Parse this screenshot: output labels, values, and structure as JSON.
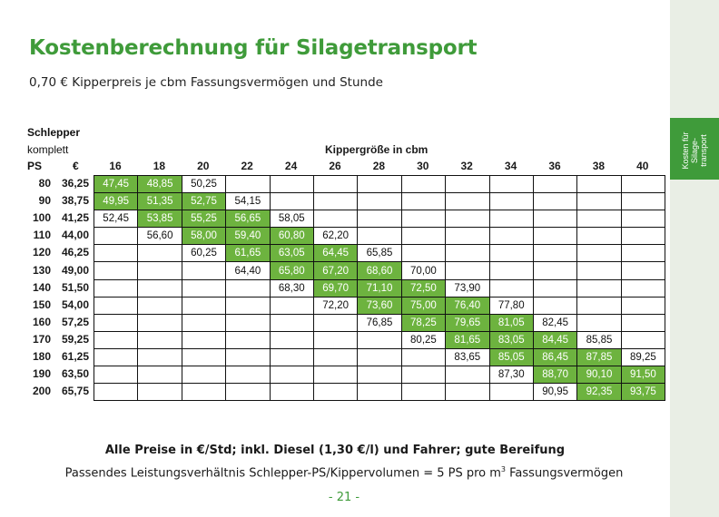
{
  "title": "Kostenberechnung für Silagetransport",
  "subtitle": "0,70 € Kipperpreis je cbm Fassungsvermögen und Stunde",
  "side_tab": "Kosten für\nSilage-\ntransport",
  "table": {
    "header_schlepper": "Schlepper",
    "header_komplett": "komplett",
    "header_ps": "PS",
    "header_eur": "€",
    "header_kipper": "Kippergröße in cbm",
    "columns": [
      "16",
      "18",
      "20",
      "22",
      "24",
      "26",
      "28",
      "30",
      "32",
      "34",
      "36",
      "38",
      "40"
    ],
    "rows": [
      {
        "ps": "80",
        "eur": "36,25",
        "cells": [
          "47,45",
          "48,85",
          "50,25",
          "",
          "",
          "",
          "",
          "",
          "",
          "",
          "",
          "",
          ""
        ],
        "green": [
          1,
          1,
          0,
          0,
          0,
          0,
          0,
          0,
          0,
          0,
          0,
          0,
          0
        ]
      },
      {
        "ps": "90",
        "eur": "38,75",
        "cells": [
          "49,95",
          "51,35",
          "52,75",
          "54,15",
          "",
          "",
          "",
          "",
          "",
          "",
          "",
          "",
          ""
        ],
        "green": [
          1,
          1,
          1,
          0,
          0,
          0,
          0,
          0,
          0,
          0,
          0,
          0,
          0
        ]
      },
      {
        "ps": "100",
        "eur": "41,25",
        "cells": [
          "52,45",
          "53,85",
          "55,25",
          "56,65",
          "58,05",
          "",
          "",
          "",
          "",
          "",
          "",
          "",
          ""
        ],
        "green": [
          0,
          1,
          1,
          1,
          0,
          0,
          0,
          0,
          0,
          0,
          0,
          0,
          0
        ]
      },
      {
        "ps": "110",
        "eur": "44,00",
        "cells": [
          "",
          "56,60",
          "58,00",
          "59,40",
          "60,80",
          "62,20",
          "",
          "",
          "",
          "",
          "",
          "",
          ""
        ],
        "green": [
          0,
          0,
          1,
          1,
          1,
          0,
          0,
          0,
          0,
          0,
          0,
          0,
          0
        ]
      },
      {
        "ps": "120",
        "eur": "46,25",
        "cells": [
          "",
          "",
          "60,25",
          "61,65",
          "63,05",
          "64,45",
          "65,85",
          "",
          "",
          "",
          "",
          "",
          ""
        ],
        "green": [
          0,
          0,
          0,
          1,
          1,
          1,
          0,
          0,
          0,
          0,
          0,
          0,
          0
        ]
      },
      {
        "ps": "130",
        "eur": "49,00",
        "cells": [
          "",
          "",
          "",
          "64,40",
          "65,80",
          "67,20",
          "68,60",
          "70,00",
          "",
          "",
          "",
          "",
          ""
        ],
        "green": [
          0,
          0,
          0,
          0,
          1,
          1,
          1,
          0,
          0,
          0,
          0,
          0,
          0
        ]
      },
      {
        "ps": "140",
        "eur": "51,50",
        "cells": [
          "",
          "",
          "",
          "",
          "68,30",
          "69,70",
          "71,10",
          "72,50",
          "73,90",
          "",
          "",
          "",
          ""
        ],
        "green": [
          0,
          0,
          0,
          0,
          0,
          1,
          1,
          1,
          0,
          0,
          0,
          0,
          0
        ]
      },
      {
        "ps": "150",
        "eur": "54,00",
        "cells": [
          "",
          "",
          "",
          "",
          "",
          "72,20",
          "73,60",
          "75,00",
          "76,40",
          "77,80",
          "",
          "",
          ""
        ],
        "green": [
          0,
          0,
          0,
          0,
          0,
          0,
          1,
          1,
          1,
          0,
          0,
          0,
          0
        ]
      },
      {
        "ps": "160",
        "eur": "57,25",
        "cells": [
          "",
          "",
          "",
          "",
          "",
          "",
          "76,85",
          "78,25",
          "79,65",
          "81,05",
          "82,45",
          "",
          ""
        ],
        "green": [
          0,
          0,
          0,
          0,
          0,
          0,
          0,
          1,
          1,
          1,
          0,
          0,
          0
        ]
      },
      {
        "ps": "170",
        "eur": "59,25",
        "cells": [
          "",
          "",
          "",
          "",
          "",
          "",
          "",
          "80,25",
          "81,65",
          "83,05",
          "84,45",
          "85,85",
          ""
        ],
        "green": [
          0,
          0,
          0,
          0,
          0,
          0,
          0,
          0,
          1,
          1,
          1,
          0,
          0
        ]
      },
      {
        "ps": "180",
        "eur": "61,25",
        "cells": [
          "",
          "",
          "",
          "",
          "",
          "",
          "",
          "",
          "83,65",
          "85,05",
          "86,45",
          "87,85",
          "89,25"
        ],
        "green": [
          0,
          0,
          0,
          0,
          0,
          0,
          0,
          0,
          0,
          1,
          1,
          1,
          0
        ]
      },
      {
        "ps": "190",
        "eur": "63,50",
        "cells": [
          "",
          "",
          "",
          "",
          "",
          "",
          "",
          "",
          "",
          "87,30",
          "88,70",
          "90,10",
          "91,50"
        ],
        "green": [
          0,
          0,
          0,
          0,
          0,
          0,
          0,
          0,
          0,
          0,
          1,
          1,
          1
        ]
      },
      {
        "ps": "200",
        "eur": "65,75",
        "cells": [
          "",
          "",
          "",
          "",
          "",
          "",
          "",
          "",
          "",
          "",
          "90,95",
          "92,35",
          "93,75"
        ],
        "green": [
          0,
          0,
          0,
          0,
          0,
          0,
          0,
          0,
          0,
          0,
          0,
          1,
          1
        ]
      }
    ]
  },
  "footer": {
    "note_bold": "Alle Preise in €/Std; inkl. Diesel (1,30 €/l) und Fahrer; gute Bereifung",
    "note_text": "Passendes Leistungsverhältnis Schlepper-PS/Kippervolumen = 5 PS pro m",
    "note_sup": "3",
    "note_tail": " Fassungsvermögen",
    "page_number": "- 21 -"
  },
  "colors": {
    "accent_green": "#3f9b3a",
    "cell_green": "#6db33f",
    "side_bg": "#e9eee5"
  }
}
